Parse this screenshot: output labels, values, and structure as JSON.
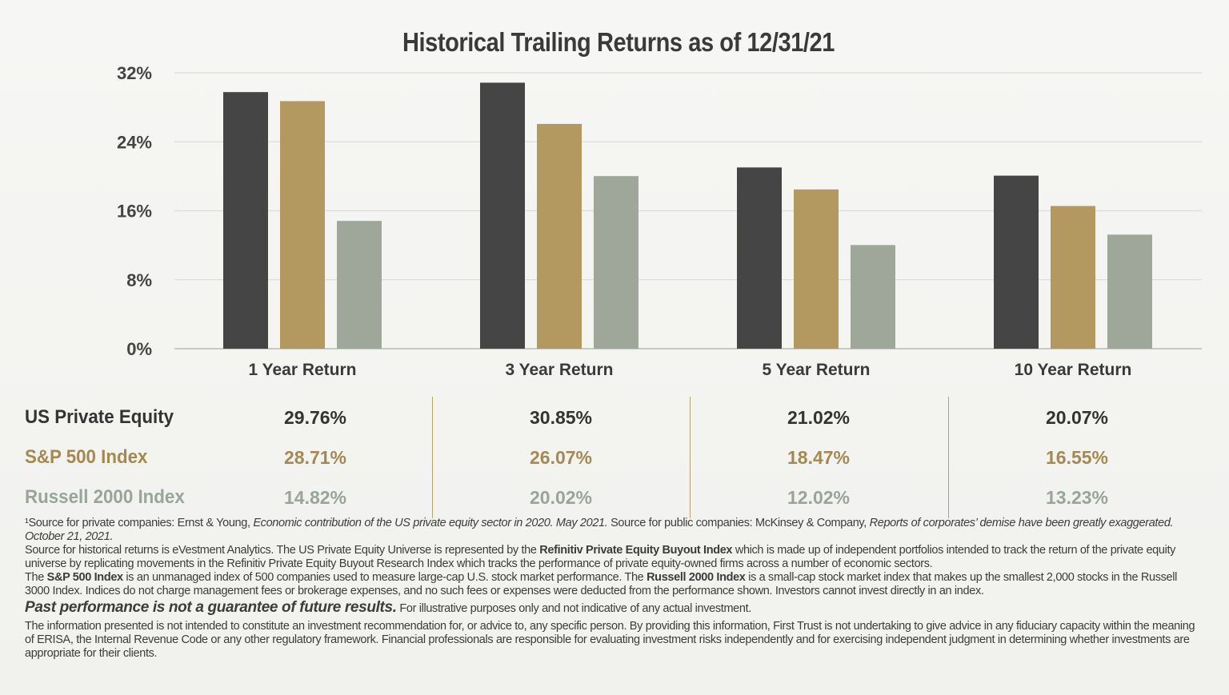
{
  "chart_data": {
    "type": "bar",
    "title": "Historical Trailing Returns as of 12/31/21",
    "categories": [
      "1 Year Return",
      "3 Year Return",
      "5 Year Return",
      "10 Year Return"
    ],
    "series": [
      {
        "name": "US Private Equity",
        "color": "#454545",
        "values": [
          29.76,
          30.85,
          21.02,
          20.07
        ],
        "labels": [
          "29.76%",
          "30.85%",
          "21.02%",
          "20.07%"
        ]
      },
      {
        "name": "S&P 500 Index",
        "color": "#b3985f",
        "values": [
          28.71,
          26.07,
          18.47,
          16.55
        ],
        "labels": [
          "28.71%",
          "26.07%",
          "18.47%",
          "16.55%"
        ]
      },
      {
        "name": "Russell 2000 Index",
        "color": "#9ea79a",
        "values": [
          14.82,
          20.02,
          12.02,
          13.23
        ],
        "labels": [
          "14.82%",
          "20.02%",
          "12.02%",
          "13.23%"
        ]
      }
    ],
    "ylim": [
      0,
      32
    ],
    "yticks": [
      0,
      8,
      16,
      24,
      32
    ],
    "ytick_labels": [
      "0%",
      "8%",
      "16%",
      "24%",
      "32%"
    ],
    "grid": true,
    "xlabel": "",
    "ylabel": ""
  },
  "footnotes": {
    "f1_a": "¹Source for private companies: Ernst  & Young, ",
    "f1_b": "Economic contribution of the US private equity sector in 2020. May 2021.",
    "f1_c": " Source for public companies: McKinsey & Company, ",
    "f1_d": "Reports of corporates’ demise have been greatly exaggerated. October 21, 2021.",
    "f2_a": "Source for historical returns is eVestment Analytics. The US Private Equity Universe is represented by the ",
    "f2_b": "Refinitiv Private Equity Buyout Index",
    "f2_c": " which is made up of independent portfolios intended to track the return of the private equity universe by replicating movements in the Refinitiv Private Equity Buyout Research Index which tracks the performance of private equity-owned firms across a number of economic sectors.",
    "f3_a": "The ",
    "f3_b": "S&P 500 Index",
    "f3_c": " is an unmanaged index of 500 companies used to measure large-cap U.S. stock market performance. The ",
    "f3_d": "Russell 2000 Index",
    "f3_e": " is a small-cap stock market index that makes up the smallest 2,000 stocks in the Russell 3000 Index. Indices do not charge management fees or brokerage expenses, and no such fees or expenses were deducted from the performance shown. Investors cannot invest directly in an index.",
    "past_perf": "Past performance is not a guarantee of future results.",
    "past_perf_note": " For illustrative purposes only and not indicative of any actual investment.",
    "disclaimer": "The information presented is not intended to constitute an investment recommendation for, or advice to, any specific person. By providing this information, First Trust is not undertaking to give advice in any fiduciary capacity within the meaning of ERISA, the Internal Revenue Code or any other regulatory framework. Financial professionals are responsible for evaluating investment risks independently and for exercising independent judgment in determining whether investments are appropriate for their clients."
  }
}
